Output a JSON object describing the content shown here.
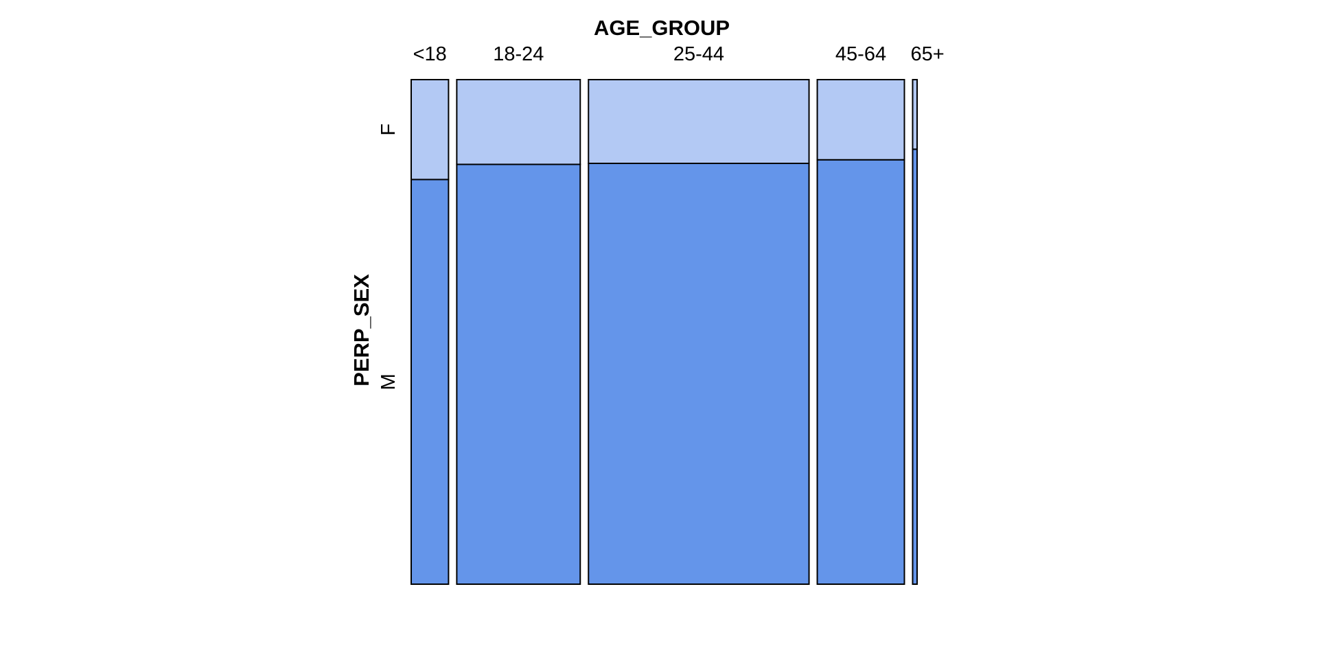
{
  "chart_data": {
    "type": "mosaic",
    "xlabel": "AGE_GROUP",
    "ylabel": "PERP_SEX",
    "x_categories": [
      "<18",
      "18-24",
      "25-44",
      "45-64",
      "65+"
    ],
    "y_categories": [
      "F",
      "M"
    ],
    "x_proportions": [
      0.075,
      0.248,
      0.443,
      0.175,
      0.009
    ],
    "series": [
      {
        "name": "F",
        "values": [
          0.198,
          0.168,
          0.166,
          0.159,
          0.138
        ]
      },
      {
        "name": "M",
        "values": [
          0.802,
          0.832,
          0.834,
          0.841,
          0.862
        ]
      }
    ],
    "colors": {
      "F": "#b3c9f4",
      "M": "#6495ea"
    }
  }
}
